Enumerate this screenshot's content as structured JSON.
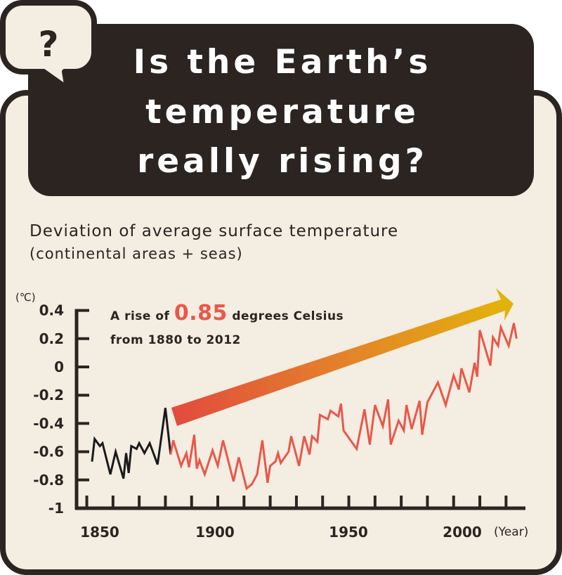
{
  "badge": {
    "symbol": "?"
  },
  "title_lines": [
    "Is the Earth’s",
    "temperature",
    "really rising?"
  ],
  "subtitle": {
    "line1": "Deviation of average surface temperature",
    "line2": "(continental areas + seas)"
  },
  "annotation": {
    "prefix": "A rise of",
    "value": "0.85",
    "suffix": "degrees Celsius",
    "line2": "from 1880 to 2012"
  },
  "colors": {
    "dark": "#2b2421",
    "panel": "#f3ede2",
    "red": "#e9574a",
    "arrow_start": "#e24a3f",
    "arrow_end": "#e3b40a"
  },
  "chart_data": {
    "type": "line",
    "title": "Deviation of average surface temperature (continental areas + seas)",
    "ylabel": "(℃)",
    "xlabel": "(Year)",
    "ylim": [
      -1,
      0.4
    ],
    "xlim": [
      1850,
      2012
    ],
    "y_ticks": [
      "0.4",
      "0.2",
      "0",
      "-0.2",
      "-0.4",
      "-0.6",
      "-0.8",
      "-1"
    ],
    "y_tick_values": [
      0.4,
      0.2,
      0,
      -0.2,
      -0.4,
      -0.6,
      -0.8,
      -1
    ],
    "x_ticks": [
      "1850",
      "1900",
      "1950",
      "2000"
    ],
    "grid": false,
    "series": [
      {
        "color": "#1a1a1a",
        "x": [
          1850,
          1851,
          1853,
          1854,
          1857,
          1859,
          1862,
          1863,
          1864,
          1865,
          1867,
          1868,
          1870,
          1872,
          1875,
          1878,
          1880
        ],
        "y": [
          -0.67,
          -0.51,
          -0.56,
          -0.54,
          -0.76,
          -0.6,
          -0.79,
          -0.61,
          -0.75,
          -0.56,
          -0.58,
          -0.54,
          -0.61,
          -0.54,
          -0.69,
          -0.29,
          -0.62
        ]
      },
      {
        "color": "#e9574a",
        "x": [
          1880,
          1881,
          1884,
          1886,
          1887,
          1889,
          1890,
          1891,
          1893,
          1896,
          1898,
          1900,
          1904,
          1906,
          1909,
          1911,
          1913,
          1915,
          1917,
          1918,
          1920,
          1921,
          1922,
          1925,
          1926,
          1929,
          1931,
          1933,
          1934,
          1936,
          1937,
          1940,
          1941,
          1944,
          1945,
          1946,
          1951,
          1954,
          1956,
          1958,
          1961,
          1963,
          1964,
          1967,
          1969,
          1970,
          1972,
          1975,
          1976,
          1978,
          1982,
          1985,
          1988,
          1990,
          1991,
          1994,
          1996,
          1997,
          1998,
          2002,
          2003,
          2005,
          2006,
          2009,
          2011,
          2012
        ],
        "y": [
          -0.62,
          -0.52,
          -0.7,
          -0.61,
          -0.71,
          -0.48,
          -0.72,
          -0.66,
          -0.76,
          -0.59,
          -0.7,
          -0.52,
          -0.81,
          -0.64,
          -0.86,
          -0.83,
          -0.76,
          -0.52,
          -0.82,
          -0.7,
          -0.67,
          -0.61,
          -0.68,
          -0.6,
          -0.49,
          -0.7,
          -0.49,
          -0.62,
          -0.49,
          -0.53,
          -0.34,
          -0.37,
          -0.31,
          -0.35,
          -0.26,
          -0.45,
          -0.58,
          -0.3,
          -0.55,
          -0.27,
          -0.42,
          -0.23,
          -0.55,
          -0.38,
          -0.45,
          -0.27,
          -0.44,
          -0.24,
          -0.48,
          -0.25,
          -0.11,
          -0.27,
          -0.06,
          -0.16,
          -0.01,
          -0.18,
          0.03,
          -0.07,
          0.26,
          0.01,
          0.21,
          0.15,
          0.28,
          0.15,
          0.31,
          0.2
        ]
      }
    ],
    "annotations": [
      "A rise of 0.85 degrees Celsius from 1880 to 2012"
    ]
  }
}
